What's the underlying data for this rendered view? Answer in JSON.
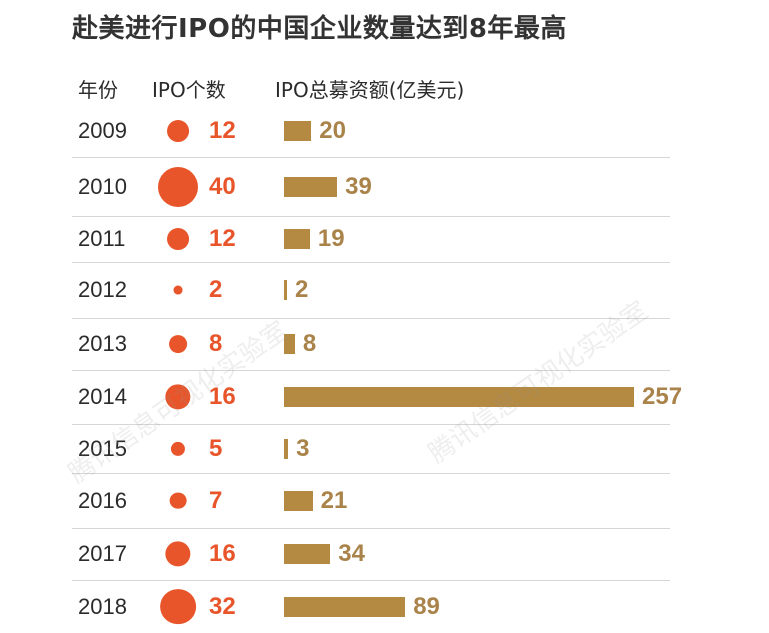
{
  "header": {
    "title": "赴美进行IPO的中国企业数量达到8年最高",
    "col_year": "年份",
    "col_ipo": "IPO个数",
    "col_funds": "IPO总募资额(亿美元)"
  },
  "watermark": "腾讯信息可视化实验室",
  "colors": {
    "ipo": "#e8552a",
    "funds_bar": "#b48a43",
    "funds_text": "#a9834a"
  },
  "chart_data": {
    "type": "table",
    "title": "赴美进行IPO的中国企业数量达到8年最高",
    "columns": [
      "年份",
      "IPO个数",
      "IPO总募资额(亿美元)"
    ],
    "categories": [
      "2009",
      "2010",
      "2011",
      "2012",
      "2013",
      "2014",
      "2015",
      "2016",
      "2017",
      "2018"
    ],
    "series": [
      {
        "name": "IPO个数",
        "values": [
          12,
          40,
          12,
          2,
          8,
          16,
          5,
          7,
          16,
          32
        ]
      },
      {
        "name": "IPO总募资额(亿美元)",
        "values": [
          20,
          39,
          19,
          2,
          8,
          257,
          3,
          21,
          34,
          89
        ]
      }
    ]
  }
}
